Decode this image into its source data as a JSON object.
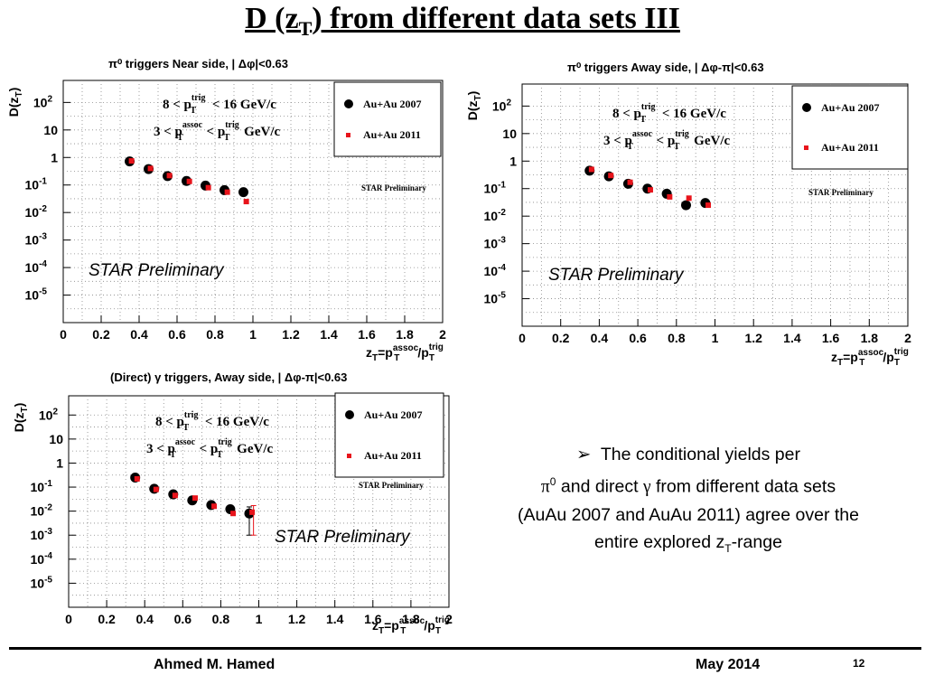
{
  "slide": {
    "title_main": "D (z",
    "title_sub": "T",
    "title_rest": ") from different data sets III"
  },
  "common": {
    "ylabel_main": "D(z",
    "ylabel_sub": "T",
    "ylabel_end": ")",
    "xlabel_parts": [
      "z",
      "T",
      "=p",
      "T",
      "assoc",
      "/p",
      "T",
      "trig"
    ],
    "legend_2007": "Au+Au 2007",
    "legend_2011": "Au+Au 2011",
    "prelim_small": "STAR Preliminary",
    "prelim_big": "STAR Preliminary",
    "cut1": [
      "8 < p",
      "T",
      "trig",
      " < 16 GeV/c"
    ],
    "cut2": [
      "3 < p",
      "T",
      "assoc",
      " < p",
      "T",
      "trig",
      " GeV/c"
    ],
    "color_2007": "#000000",
    "color_2011": "#e8141b"
  },
  "chart_data": [
    {
      "type": "scatter",
      "title": "π⁰ triggers Near side, | Δφ|<0.63",
      "xlabel": "z_T=p_T^assoc/p_T^trig",
      "ylabel": "D(z_T)",
      "xlim": [
        0,
        2
      ],
      "ylim_log10": [
        -6,
        2.7
      ],
      "yscale": "log",
      "grid": true,
      "legend_position": "top-right",
      "series": [
        {
          "name": "Au+Au 2007",
          "x": [
            0.35,
            0.45,
            0.55,
            0.65,
            0.75,
            0.85,
            0.95
          ],
          "y": [
            0.72,
            0.38,
            0.21,
            0.14,
            0.095,
            0.065,
            0.055
          ],
          "err": [
            0,
            0,
            0,
            0,
            0,
            0,
            0
          ]
        },
        {
          "name": "Au+Au 2011",
          "x": [
            0.36,
            0.46,
            0.56,
            0.665,
            0.765,
            0.865,
            0.965
          ],
          "y": [
            0.75,
            0.4,
            0.22,
            0.135,
            0.08,
            0.055,
            0.025
          ],
          "err": [
            0,
            0,
            0,
            0,
            0,
            0,
            0
          ]
        }
      ]
    },
    {
      "type": "scatter",
      "title": "π⁰ triggers Away side, | Δφ-π|<0.63",
      "xlabel": "z_T=p_T^assoc/p_T^trig",
      "ylabel": "D(z_T)",
      "xlim": [
        0,
        2
      ],
      "ylim_log10": [
        -6,
        2.7
      ],
      "yscale": "log",
      "grid": true,
      "legend_position": "top-right",
      "series": [
        {
          "name": "Au+Au 2007",
          "x": [
            0.35,
            0.45,
            0.55,
            0.65,
            0.75,
            0.85,
            0.95
          ],
          "y": [
            0.45,
            0.28,
            0.15,
            0.1,
            0.065,
            0.025,
            0.03
          ],
          "err": [
            0,
            0,
            0,
            0,
            0,
            0,
            0
          ]
        },
        {
          "name": "Au+Au 2011",
          "x": [
            0.36,
            0.46,
            0.56,
            0.665,
            0.765,
            0.865,
            0.965
          ],
          "y": [
            0.5,
            0.3,
            0.17,
            0.09,
            0.05,
            0.045,
            0.025
          ],
          "err": [
            0,
            0,
            0,
            0,
            0,
            0,
            0
          ]
        }
      ]
    },
    {
      "type": "scatter",
      "title": "(Direct)  γ triggers, Away side, | Δφ-π|<0.63",
      "xlabel": "z_T=p_T^assoc/p_T^trig",
      "ylabel": "D(z_T)",
      "xlim": [
        0,
        2
      ],
      "ylim_log10": [
        -6,
        2.7
      ],
      "yscale": "log",
      "grid": true,
      "legend_position": "top-right",
      "series": [
        {
          "name": "Au+Au 2007",
          "x": [
            0.35,
            0.45,
            0.55,
            0.65,
            0.75,
            0.85,
            0.95
          ],
          "y": [
            0.25,
            0.085,
            0.05,
            0.028,
            0.018,
            0.012,
            0.008
          ],
          "err": [
            0,
            0,
            0,
            0,
            0,
            0,
            0.007
          ]
        },
        {
          "name": "Au+Au 2011",
          "x": [
            0.36,
            0.46,
            0.56,
            0.665,
            0.765,
            0.865,
            0.965
          ],
          "y": [
            0.22,
            0.08,
            0.045,
            0.035,
            0.016,
            0.008,
            0.009
          ],
          "err": [
            0,
            0,
            0,
            0,
            0,
            0,
            0.008
          ]
        }
      ]
    }
  ],
  "bullet": {
    "marker": "➢",
    "line1": "The conditional yields per",
    "pi": "π",
    "pi_sup": "0",
    "line2_mid": " and direct ",
    "gamma": "γ",
    "line2_end": " from different data sets",
    "line3": "(AuAu 2007 and AuAu 2011) agree over the",
    "line4_start": "entire explored z",
    "line4_sub": "T",
    "line4_end": "-range"
  },
  "footer": {
    "author": "Ahmed M. Hamed",
    "date": "May 2014",
    "page": "12"
  }
}
